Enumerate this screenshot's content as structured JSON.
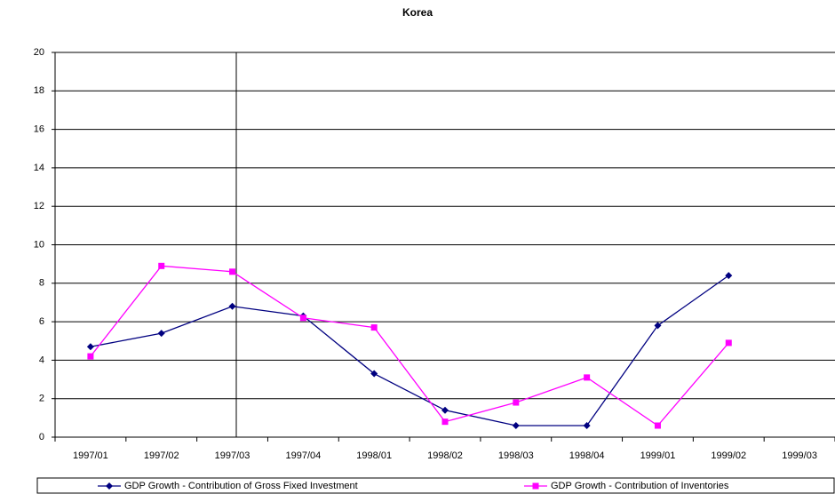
{
  "chart_data": {
    "type": "line",
    "title": "Korea",
    "categories": [
      "1997/01",
      "1997/02",
      "1997/03",
      "1997/04",
      "1998/01",
      "1998/02",
      "1998/03",
      "1998/04",
      "1999/01",
      "1999/02",
      "1999/03"
    ],
    "series": [
      {
        "name": "GDP Growth - Contribution of Gross Fixed Investment",
        "color": "#000080",
        "marker": "diamond",
        "values": [
          4.7,
          5.4,
          6.8,
          6.3,
          3.3,
          1.4,
          0.6,
          0.6,
          5.8,
          8.4,
          null
        ]
      },
      {
        "name": "GDP Growth - Contribution of Inventories",
        "color": "#ff00ff",
        "marker": "square",
        "values": [
          4.2,
          8.9,
          8.6,
          6.2,
          5.7,
          0.8,
          1.8,
          3.1,
          0.6,
          4.9,
          null
        ]
      }
    ],
    "ylim": [
      0,
      20
    ],
    "yticks": [
      0,
      2,
      4,
      6,
      8,
      10,
      12,
      14,
      16,
      18,
      20
    ],
    "grid": true,
    "legend": "bottom"
  }
}
